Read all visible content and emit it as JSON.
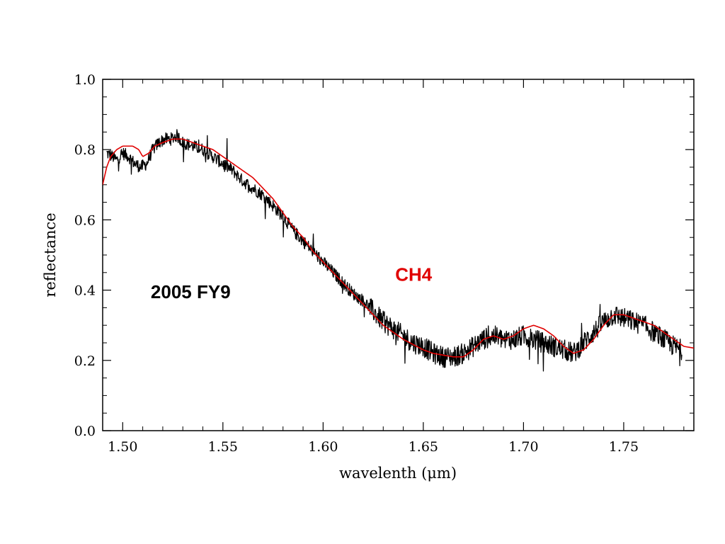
{
  "chart_data": {
    "type": "line",
    "xlabel": "wavelenth (μm)",
    "ylabel": "reflectance",
    "xlim": [
      1.49,
      1.785
    ],
    "ylim": [
      0.0,
      1.0
    ],
    "x_ticks": [
      1.5,
      1.55,
      1.6,
      1.65,
      1.7,
      1.75
    ],
    "x_tick_labels": [
      "1.50",
      "1.55",
      "1.60",
      "1.65",
      "1.70",
      "1.75"
    ],
    "y_ticks": [
      0.0,
      0.2,
      0.4,
      0.6,
      0.8,
      1.0
    ],
    "y_tick_labels": [
      "0.0",
      "0.2",
      "0.4",
      "0.6",
      "0.8",
      "1.0"
    ],
    "grid": false,
    "annotations": [
      {
        "text": "2005 FY9",
        "color": "#000000",
        "x": 1.514,
        "y": 0.395
      },
      {
        "text": "CH4",
        "color": "#e00000",
        "x": 1.636,
        "y": 0.445
      }
    ],
    "series": [
      {
        "color": "#000000",
        "style": "noisy",
        "x": [
          1.492,
          1.495,
          1.497,
          1.5,
          1.503,
          1.506,
          1.509,
          1.512,
          1.515,
          1.518,
          1.521,
          1.524,
          1.527,
          1.53,
          1.535,
          1.54,
          1.545,
          1.55,
          1.555,
          1.56,
          1.565,
          1.57,
          1.575,
          1.58,
          1.585,
          1.59,
          1.595,
          1.6,
          1.605,
          1.61,
          1.615,
          1.62,
          1.625,
          1.63,
          1.635,
          1.64,
          1.645,
          1.65,
          1.655,
          1.66,
          1.665,
          1.67,
          1.675,
          1.68,
          1.685,
          1.69,
          1.695,
          1.7,
          1.705,
          1.71,
          1.715,
          1.72,
          1.725,
          1.73,
          1.735,
          1.74,
          1.745,
          1.75,
          1.755,
          1.76,
          1.765,
          1.77,
          1.775,
          1.779
        ],
        "y": [
          0.79,
          0.78,
          0.77,
          0.79,
          0.78,
          0.76,
          0.75,
          0.76,
          0.8,
          0.82,
          0.83,
          0.83,
          0.84,
          0.82,
          0.81,
          0.8,
          0.78,
          0.76,
          0.74,
          0.71,
          0.69,
          0.67,
          0.64,
          0.61,
          0.57,
          0.54,
          0.51,
          0.48,
          0.45,
          0.42,
          0.39,
          0.37,
          0.34,
          0.31,
          0.29,
          0.27,
          0.25,
          0.24,
          0.22,
          0.21,
          0.21,
          0.22,
          0.24,
          0.26,
          0.27,
          0.26,
          0.26,
          0.27,
          0.26,
          0.25,
          0.24,
          0.23,
          0.22,
          0.25,
          0.28,
          0.31,
          0.33,
          0.32,
          0.31,
          0.3,
          0.28,
          0.26,
          0.24,
          0.23
        ]
      },
      {
        "color": "#e00000",
        "style": "smooth",
        "x": [
          1.49,
          1.492,
          1.494,
          1.497,
          1.5,
          1.505,
          1.508,
          1.51,
          1.513,
          1.516,
          1.52,
          1.525,
          1.53,
          1.535,
          1.54,
          1.545,
          1.55,
          1.555,
          1.56,
          1.565,
          1.57,
          1.575,
          1.58,
          1.585,
          1.59,
          1.595,
          1.6,
          1.605,
          1.61,
          1.615,
          1.62,
          1.625,
          1.63,
          1.635,
          1.64,
          1.645,
          1.65,
          1.655,
          1.66,
          1.665,
          1.67,
          1.675,
          1.68,
          1.685,
          1.69,
          1.695,
          1.7,
          1.705,
          1.71,
          1.715,
          1.72,
          1.725,
          1.73,
          1.735,
          1.74,
          1.745,
          1.75,
          1.755,
          1.76,
          1.765,
          1.77,
          1.775,
          1.78,
          1.785
        ],
        "y": [
          0.7,
          0.75,
          0.78,
          0.8,
          0.81,
          0.81,
          0.8,
          0.78,
          0.79,
          0.81,
          0.82,
          0.83,
          0.83,
          0.82,
          0.81,
          0.8,
          0.78,
          0.76,
          0.74,
          0.72,
          0.69,
          0.66,
          0.62,
          0.58,
          0.55,
          0.51,
          0.48,
          0.45,
          0.42,
          0.39,
          0.36,
          0.33,
          0.3,
          0.28,
          0.26,
          0.245,
          0.23,
          0.22,
          0.215,
          0.21,
          0.21,
          0.23,
          0.26,
          0.27,
          0.26,
          0.27,
          0.29,
          0.3,
          0.29,
          0.27,
          0.24,
          0.22,
          0.23,
          0.26,
          0.3,
          0.33,
          0.33,
          0.32,
          0.31,
          0.3,
          0.28,
          0.26,
          0.24,
          0.235
        ]
      }
    ]
  }
}
